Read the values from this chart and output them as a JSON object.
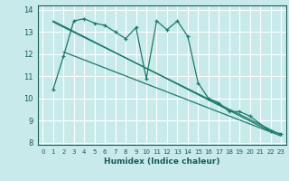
{
  "xlabel": "Humidex (Indice chaleur)",
  "x": [
    0,
    1,
    2,
    3,
    4,
    5,
    6,
    7,
    8,
    9,
    10,
    11,
    12,
    13,
    14,
    15,
    16,
    17,
    18,
    19,
    20,
    21,
    22,
    23
  ],
  "line1": [
    null,
    10.4,
    11.9,
    13.5,
    13.6,
    13.4,
    13.3,
    13.0,
    12.7,
    13.2,
    10.9,
    13.5,
    13.1,
    13.5,
    12.8,
    10.7,
    10.0,
    9.8,
    9.4,
    9.4,
    9.2,
    null,
    8.5,
    8.4
  ],
  "line2_x": [
    1,
    22
  ],
  "line2_y": [
    13.5,
    8.5
  ],
  "line3_x": [
    1,
    23
  ],
  "line3_y": [
    13.45,
    8.35
  ],
  "line4_x": [
    2,
    23
  ],
  "line4_y": [
    12.1,
    8.3
  ],
  "bg_color": "#c8eaea",
  "grid_color": "#ffffff",
  "line_color": "#1a7a6a",
  "xlim": [
    -0.5,
    23.5
  ],
  "ylim": [
    7.9,
    14.2
  ],
  "yticks": [
    8,
    9,
    10,
    11,
    12,
    13,
    14
  ],
  "xticks": [
    0,
    1,
    2,
    3,
    4,
    5,
    6,
    7,
    8,
    9,
    10,
    11,
    12,
    13,
    14,
    15,
    16,
    17,
    18,
    19,
    20,
    21,
    22,
    23
  ]
}
